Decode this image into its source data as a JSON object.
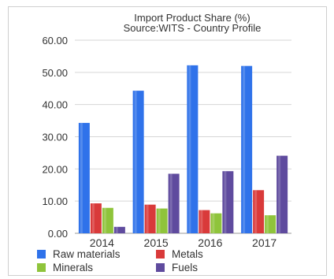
{
  "chart_data": {
    "type": "bar",
    "title": "Import Product Share (%)",
    "subtitle": "Source:WITS - Country Profile",
    "xlabel": "",
    "ylabel": "",
    "categories": [
      "2014",
      "2015",
      "2016",
      "2017"
    ],
    "ylim": [
      0,
      60
    ],
    "yticks": [
      "0.00",
      "10.00",
      "20.00",
      "30.00",
      "40.00",
      "50.00",
      "60.00"
    ],
    "grid": true,
    "legend_position": "bottom",
    "series": [
      {
        "name": "Raw materials",
        "color": "#2f72ea",
        "values": [
          34.3,
          44.3,
          52.2,
          52.0
        ]
      },
      {
        "name": "Metals",
        "color": "#d93a3a",
        "values": [
          9.3,
          8.9,
          7.2,
          13.4
        ]
      },
      {
        "name": "Minerals",
        "color": "#8fc43b",
        "values": [
          7.9,
          7.7,
          6.2,
          5.6
        ]
      },
      {
        "name": "Fuels",
        "color": "#5f4b9e",
        "values": [
          2.0,
          18.5,
          19.3,
          24.1
        ]
      }
    ]
  }
}
